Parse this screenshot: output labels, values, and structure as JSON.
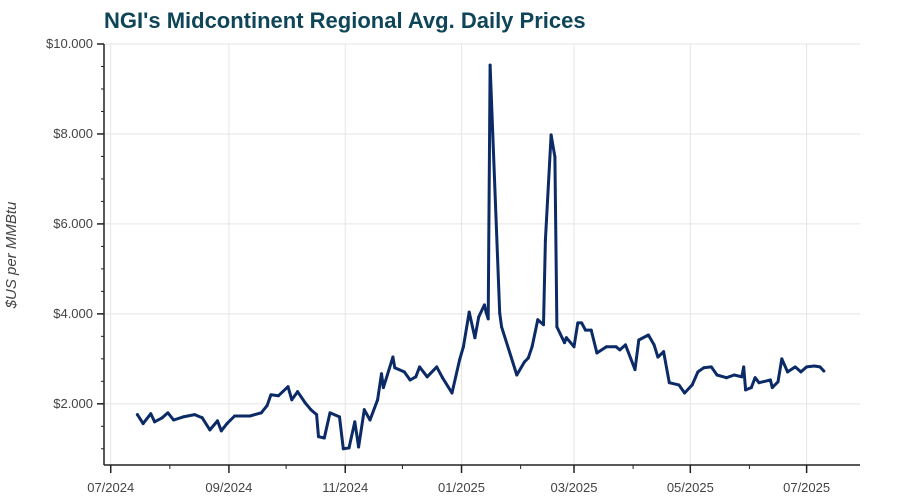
{
  "chart_data": {
    "type": "line",
    "title": "NGI's Midcontinent Regional Avg. Daily Prices",
    "xlabel": "",
    "ylabel": "$US per MMBtu",
    "ylim": [
      0.64,
      10
    ],
    "xlim": [
      "2024-06-28",
      "2025-07-29"
    ],
    "grid": true,
    "line_color": "#0b2a66",
    "title_color": "#0e4558",
    "y_ticks": [
      {
        "value": 2,
        "label": "$2.000"
      },
      {
        "value": 4,
        "label": "$4.000"
      },
      {
        "value": 6,
        "label": "$6.000"
      },
      {
        "value": 8,
        "label": "$8.000"
      },
      {
        "value": 10,
        "label": "$10.000"
      }
    ],
    "x_ticks": [
      {
        "value": "2024-07-01",
        "label": "07/2024"
      },
      {
        "value": "2024-09-01",
        "label": "09/2024"
      },
      {
        "value": "2024-11-01",
        "label": "11/2024"
      },
      {
        "value": "2025-01-01",
        "label": "01/2025"
      },
      {
        "value": "2025-03-01",
        "label": "03/2025"
      },
      {
        "value": "2025-05-01",
        "label": "05/2025"
      },
      {
        "value": "2025-07-01",
        "label": "07/2025"
      }
    ],
    "series": [
      {
        "x": [
          "2024-07-15",
          "2024-07-18",
          "2024-07-22",
          "2024-07-24",
          "2024-07-28",
          "2024-07-31",
          "2024-08-03",
          "2024-08-08",
          "2024-08-14",
          "2024-08-18",
          "2024-08-22",
          "2024-08-26",
          "2024-08-28",
          "2024-08-31",
          "2024-09-04",
          "2024-09-12",
          "2024-09-18",
          "2024-09-21",
          "2024-09-23",
          "2024-09-27",
          "2024-10-02",
          "2024-10-04",
          "2024-10-07",
          "2024-10-11",
          "2024-10-14",
          "2024-10-17",
          "2024-10-18",
          "2024-10-21",
          "2024-10-24",
          "2024-10-29",
          "2024-10-31",
          "2024-11-03",
          "2024-11-06",
          "2024-11-08",
          "2024-11-11",
          "2024-11-14",
          "2024-11-18",
          "2024-11-20",
          "2024-11-21",
          "2024-11-26",
          "2024-11-27",
          "2024-12-02",
          "2024-12-05",
          "2024-12-08",
          "2024-12-10",
          "2024-12-14",
          "2024-12-19",
          "2024-12-22",
          "2024-12-27",
          "2024-12-31",
          "2025-01-02",
          "2025-01-05",
          "2025-01-08",
          "2025-01-10",
          "2025-01-13",
          "2025-01-14",
          "2025-01-15",
          "2025-01-16",
          "2025-01-21",
          "2025-01-22",
          "2025-01-30",
          "2025-02-03",
          "2025-02-05",
          "2025-02-07",
          "2025-02-10",
          "2025-02-13",
          "2025-02-14",
          "2025-02-17",
          "2025-02-19",
          "2025-02-20",
          "2025-02-24",
          "2025-02-25",
          "2025-03-01",
          "2025-03-03",
          "2025-03-05",
          "2025-03-07",
          "2025-03-10",
          "2025-03-13",
          "2025-03-18",
          "2025-03-23",
          "2025-03-25",
          "2025-03-28",
          "2025-04-02",
          "2025-04-04",
          "2025-04-09",
          "2025-04-12",
          "2025-04-14",
          "2025-04-17",
          "2025-04-20",
          "2025-04-25",
          "2025-04-28",
          "2025-05-02",
          "2025-05-05",
          "2025-05-08",
          "2025-05-12",
          "2025-05-15",
          "2025-05-20",
          "2025-05-24",
          "2025-05-28",
          "2025-05-29",
          "2025-05-30",
          "2025-06-02",
          "2025-06-04",
          "2025-06-06",
          "2025-06-12",
          "2025-06-13",
          "2025-06-16",
          "2025-06-18",
          "2025-06-21",
          "2025-06-25",
          "2025-06-28",
          "2025-07-01",
          "2025-07-05",
          "2025-07-08",
          "2025-07-10"
        ],
        "y": [
          1.76,
          1.56,
          1.78,
          1.6,
          1.69,
          1.8,
          1.64,
          1.71,
          1.76,
          1.69,
          1.42,
          1.62,
          1.4,
          1.56,
          1.73,
          1.73,
          1.8,
          1.96,
          2.2,
          2.18,
          2.38,
          2.09,
          2.27,
          2.02,
          1.87,
          1.76,
          1.27,
          1.24,
          1.8,
          1.71,
          1.0,
          1.02,
          1.6,
          1.04,
          1.87,
          1.64,
          2.09,
          2.67,
          2.36,
          3.04,
          2.8,
          2.71,
          2.53,
          2.6,
          2.82,
          2.6,
          2.82,
          2.58,
          2.24,
          2.98,
          3.27,
          4.04,
          3.47,
          3.93,
          4.2,
          4.02,
          3.89,
          9.53,
          4.02,
          3.71,
          2.64,
          2.93,
          3.02,
          3.27,
          3.87,
          3.76,
          5.64,
          7.98,
          7.49,
          3.71,
          3.36,
          3.47,
          3.27,
          3.8,
          3.8,
          3.64,
          3.64,
          3.13,
          3.27,
          3.27,
          3.2,
          3.31,
          2.76,
          3.42,
          3.53,
          3.31,
          3.04,
          3.16,
          2.47,
          2.42,
          2.24,
          2.42,
          2.71,
          2.8,
          2.82,
          2.64,
          2.58,
          2.64,
          2.6,
          2.82,
          2.31,
          2.36,
          2.58,
          2.47,
          2.53,
          2.36,
          2.49,
          3.0,
          2.71,
          2.82,
          2.71,
          2.82,
          2.84,
          2.82,
          2.73
        ]
      }
    ]
  }
}
